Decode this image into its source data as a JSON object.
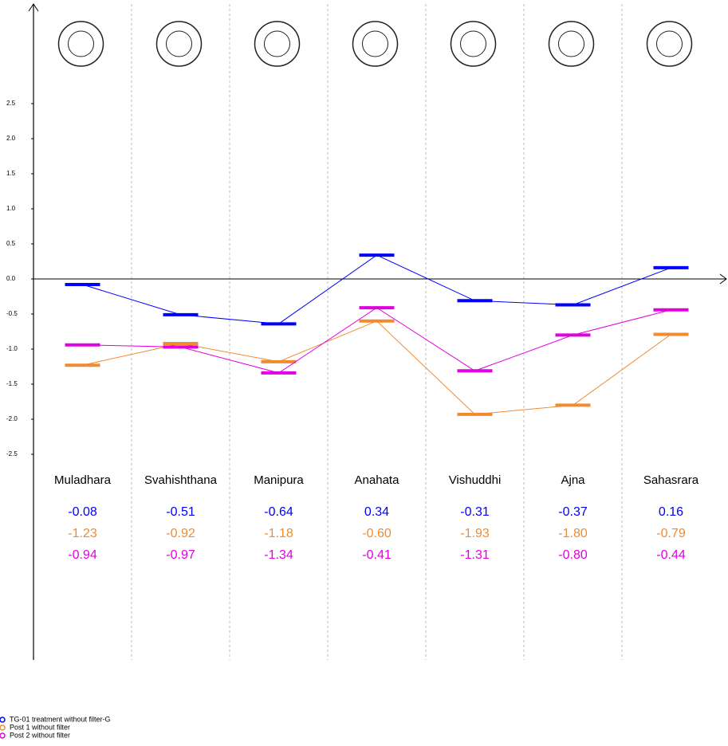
{
  "chart_data": {
    "type": "step-line",
    "categories": [
      "Muladhara",
      "Svahishthana",
      "Manipura",
      "Anahata",
      "Vishuddhi",
      "Ajna",
      "Sahasrara"
    ],
    "series": [
      {
        "name": "TG-01 treatment without filter-G",
        "color": "#0000ff",
        "values": [
          -0.08,
          -0.51,
          -0.64,
          0.34,
          -0.31,
          -0.37,
          0.16
        ],
        "value_labels": [
          "-0.08",
          "-0.51",
          "-0.64",
          "0.34",
          "-0.31",
          "-0.37",
          "0.16"
        ]
      },
      {
        "name": "Post 1 without filter",
        "color": "#f28a30",
        "values": [
          -1.23,
          -0.92,
          -1.18,
          -0.6,
          -1.93,
          -1.8,
          -0.79
        ],
        "value_labels": [
          "-1.23",
          "-0.92",
          "-1.18",
          "-0.60",
          "-1.93",
          "-1.80",
          "-0.79"
        ]
      },
      {
        "name": "Post 2 without filter",
        "color": "#e000e0",
        "values": [
          -0.94,
          -0.97,
          -1.34,
          -0.41,
          -1.31,
          -0.8,
          -0.44
        ],
        "value_labels": [
          "-0.94",
          "-0.97",
          "-1.34",
          "-0.41",
          "-1.31",
          "-0.80",
          "-0.44"
        ]
      }
    ],
    "ylim": [
      -2.5,
      2.5
    ],
    "yticks": [
      2.5,
      {
        "value": 2,
        "label": "2.0"
      },
      1.5,
      {
        "value": 1,
        "label": "1.0"
      },
      0.5,
      {
        "value": 0,
        "label": "0.0"
      },
      -0.5,
      {
        "value": -1,
        "label": "-1.0"
      },
      -1.5,
      {
        "value": -2,
        "label": "-2.0"
      },
      -2.5
    ],
    "grid": false
  }
}
